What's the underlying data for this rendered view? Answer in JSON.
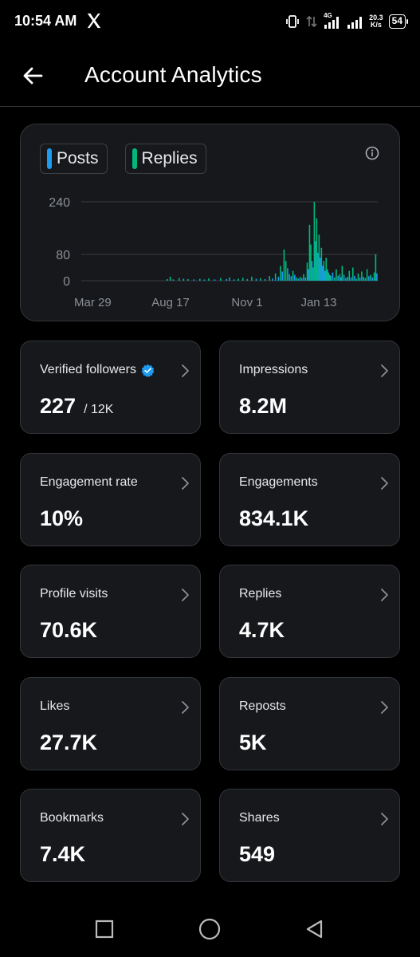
{
  "status_bar": {
    "time": "10:54 AM",
    "network": "4G",
    "speed_value": "20.3",
    "speed_unit": "K/s",
    "battery": "54"
  },
  "header": {
    "title": "Account Analytics"
  },
  "chart": {
    "legend": [
      {
        "label": "Posts",
        "color": "#1d9bf0"
      },
      {
        "label": "Replies",
        "color": "#00ba7c"
      }
    ]
  },
  "chart_data": {
    "type": "bar",
    "series": [
      {
        "name": "Posts",
        "color": "#1d9bf0"
      },
      {
        "name": "Replies",
        "color": "#00ba7c"
      }
    ],
    "ylim": [
      0,
      240
    ],
    "yticks": [
      0,
      80,
      240
    ],
    "ytick_labels": [
      "0",
      "80",
      "240"
    ],
    "xtick_labels": [
      "Mar 29",
      "Aug 17",
      "Nov 1",
      "Jan 13"
    ],
    "grid": true,
    "points": [
      [
        0.29,
        5,
        "r"
      ],
      [
        0.3,
        12,
        "r"
      ],
      [
        0.31,
        4,
        "p"
      ],
      [
        0.33,
        8,
        "r"
      ],
      [
        0.345,
        6,
        "p"
      ],
      [
        0.36,
        5,
        "r"
      ],
      [
        0.38,
        4,
        "p"
      ],
      [
        0.4,
        6,
        "r"
      ],
      [
        0.415,
        3,
        "p"
      ],
      [
        0.43,
        7,
        "r"
      ],
      [
        0.45,
        4,
        "p"
      ],
      [
        0.47,
        8,
        "r"
      ],
      [
        0.49,
        5,
        "p"
      ],
      [
        0.5,
        10,
        "r"
      ],
      [
        0.515,
        4,
        "p"
      ],
      [
        0.53,
        6,
        "r"
      ],
      [
        0.545,
        9,
        "r"
      ],
      [
        0.56,
        5,
        "p"
      ],
      [
        0.575,
        12,
        "r"
      ],
      [
        0.59,
        6,
        "p"
      ],
      [
        0.605,
        8,
        "r"
      ],
      [
        0.62,
        5,
        "p"
      ],
      [
        0.635,
        14,
        "r"
      ],
      [
        0.645,
        7,
        "p"
      ],
      [
        0.655,
        22,
        "r"
      ],
      [
        0.665,
        12,
        "p"
      ],
      [
        0.672,
        45,
        "r"
      ],
      [
        0.678,
        28,
        "p"
      ],
      [
        0.684,
        95,
        "r"
      ],
      [
        0.69,
        60,
        "r"
      ],
      [
        0.696,
        38,
        "p"
      ],
      [
        0.702,
        20,
        "r"
      ],
      [
        0.708,
        14,
        "p"
      ],
      [
        0.714,
        30,
        "r"
      ],
      [
        0.72,
        18,
        "p"
      ],
      [
        0.726,
        10,
        "r"
      ],
      [
        0.732,
        6,
        "p"
      ],
      [
        0.738,
        12,
        "r"
      ],
      [
        0.744,
        8,
        "p"
      ],
      [
        0.75,
        20,
        "r"
      ],
      [
        0.756,
        10,
        "p"
      ],
      [
        0.762,
        55,
        "r"
      ],
      [
        0.766,
        35,
        "p"
      ],
      [
        0.77,
        170,
        "r"
      ],
      [
        0.774,
        110,
        "r"
      ],
      [
        0.778,
        60,
        "p"
      ],
      [
        0.782,
        40,
        "r"
      ],
      [
        0.786,
        240,
        "r"
      ],
      [
        0.79,
        120,
        "p"
      ],
      [
        0.794,
        190,
        "r"
      ],
      [
        0.798,
        85,
        "p"
      ],
      [
        0.802,
        140,
        "r"
      ],
      [
        0.806,
        70,
        "p"
      ],
      [
        0.81,
        100,
        "r"
      ],
      [
        0.814,
        45,
        "p"
      ],
      [
        0.818,
        60,
        "r"
      ],
      [
        0.822,
        30,
        "p"
      ],
      [
        0.826,
        70,
        "r"
      ],
      [
        0.83,
        35,
        "p"
      ],
      [
        0.834,
        25,
        "r"
      ],
      [
        0.838,
        18,
        "p"
      ],
      [
        0.842,
        15,
        "r"
      ],
      [
        0.848,
        25,
        "p"
      ],
      [
        0.854,
        10,
        "r"
      ],
      [
        0.86,
        35,
        "r"
      ],
      [
        0.866,
        15,
        "p"
      ],
      [
        0.872,
        20,
        "r"
      ],
      [
        0.876,
        10,
        "p"
      ],
      [
        0.88,
        45,
        "r"
      ],
      [
        0.886,
        18,
        "p"
      ],
      [
        0.892,
        8,
        "r"
      ],
      [
        0.898,
        12,
        "p"
      ],
      [
        0.904,
        30,
        "r"
      ],
      [
        0.91,
        10,
        "p"
      ],
      [
        0.916,
        40,
        "r"
      ],
      [
        0.922,
        15,
        "p"
      ],
      [
        0.928,
        6,
        "r"
      ],
      [
        0.934,
        22,
        "r"
      ],
      [
        0.94,
        10,
        "p"
      ],
      [
        0.946,
        28,
        "r"
      ],
      [
        0.952,
        12,
        "p"
      ],
      [
        0.958,
        8,
        "r"
      ],
      [
        0.964,
        35,
        "r"
      ],
      [
        0.97,
        14,
        "p"
      ],
      [
        0.976,
        18,
        "r"
      ],
      [
        0.982,
        10,
        "p"
      ],
      [
        0.988,
        25,
        "r"
      ],
      [
        0.993,
        80,
        "r"
      ],
      [
        0.997,
        22,
        "p"
      ]
    ]
  },
  "metrics": [
    {
      "label": "Verified followers",
      "value": "227",
      "sub": "/ 12K",
      "verified": true
    },
    {
      "label": "Impressions",
      "value": "8.2M",
      "sub": ""
    },
    {
      "label": "Engagement rate",
      "value": "10%",
      "sub": ""
    },
    {
      "label": "Engagements",
      "value": "834.1K",
      "sub": ""
    },
    {
      "label": "Profile visits",
      "value": "70.6K",
      "sub": ""
    },
    {
      "label": "Replies",
      "value": "4.7K",
      "sub": ""
    },
    {
      "label": "Likes",
      "value": "27.7K",
      "sub": ""
    },
    {
      "label": "Reposts",
      "value": "5K",
      "sub": ""
    },
    {
      "label": "Bookmarks",
      "value": "7.4K",
      "sub": ""
    },
    {
      "label": "Shares",
      "value": "549",
      "sub": ""
    }
  ],
  "navbar": {
    "icons": [
      "recents-square-icon",
      "home-circle-icon",
      "back-triangle-icon"
    ]
  }
}
